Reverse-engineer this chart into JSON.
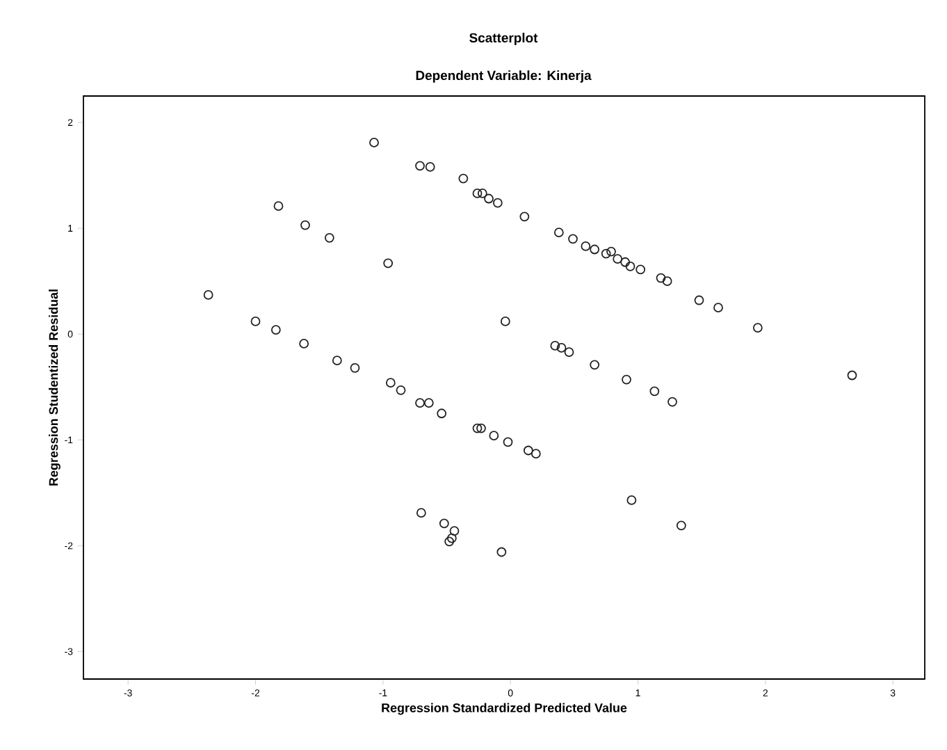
{
  "chart_data": {
    "type": "scatter",
    "title": "Scatterplot",
    "subtitle": "Dependent Variable: Kinerja",
    "xlabel": "Regression Standardized Predicted Value",
    "ylabel": "Regression Studentized Residual",
    "x": [
      -1.07,
      -0.71,
      -0.63,
      -0.37,
      -0.26,
      -0.22,
      -0.17,
      -0.1,
      0.11,
      0.38,
      0.49,
      0.59,
      0.66,
      0.75,
      0.79,
      0.84,
      0.9,
      0.94,
      1.02,
      1.18,
      1.23,
      1.48,
      1.63,
      1.94,
      -0.04,
      0.35,
      0.4,
      0.46,
      0.66,
      0.91,
      1.13,
      1.27,
      2.68,
      -2.0,
      -1.84,
      -1.62,
      -1.36,
      -1.22,
      -0.94,
      -0.86,
      -0.71,
      -0.64,
      -0.54,
      -0.26,
      -0.23,
      -0.13,
      -0.02,
      0.14,
      0.2,
      -1.82,
      -1.61,
      -1.42,
      -0.96,
      -2.37,
      0.95,
      1.34,
      -0.07,
      -0.7,
      -0.52,
      -0.44,
      -0.46,
      -0.48
    ],
    "values": [
      1.81,
      1.59,
      1.58,
      1.47,
      1.33,
      1.33,
      1.28,
      1.24,
      1.11,
      0.96,
      0.9,
      0.83,
      0.8,
      0.76,
      0.78,
      0.71,
      0.68,
      0.64,
      0.61,
      0.53,
      0.5,
      0.32,
      0.25,
      0.06,
      0.12,
      -0.11,
      -0.13,
      -0.17,
      -0.29,
      -0.43,
      -0.54,
      -0.64,
      -0.39,
      0.12,
      0.04,
      -0.09,
      -0.25,
      -0.32,
      -0.46,
      -0.53,
      -0.65,
      -0.65,
      -0.75,
      -0.89,
      -0.89,
      -0.96,
      -1.02,
      -1.1,
      -1.13,
      1.21,
      1.03,
      0.91,
      0.67,
      0.37,
      -1.57,
      -1.81,
      -2.06,
      -1.69,
      -1.79,
      -1.86,
      -1.93,
      -1.96
    ],
    "color": "#222222",
    "marker": "circle",
    "xlim": [
      -3.35,
      3.25
    ],
    "ylim": [
      -3.26,
      2.25
    ],
    "xticks": [
      -3,
      -2,
      -1,
      0,
      1,
      2,
      3
    ],
    "yticks": [
      -3,
      -2,
      -1,
      0,
      1,
      2
    ]
  }
}
